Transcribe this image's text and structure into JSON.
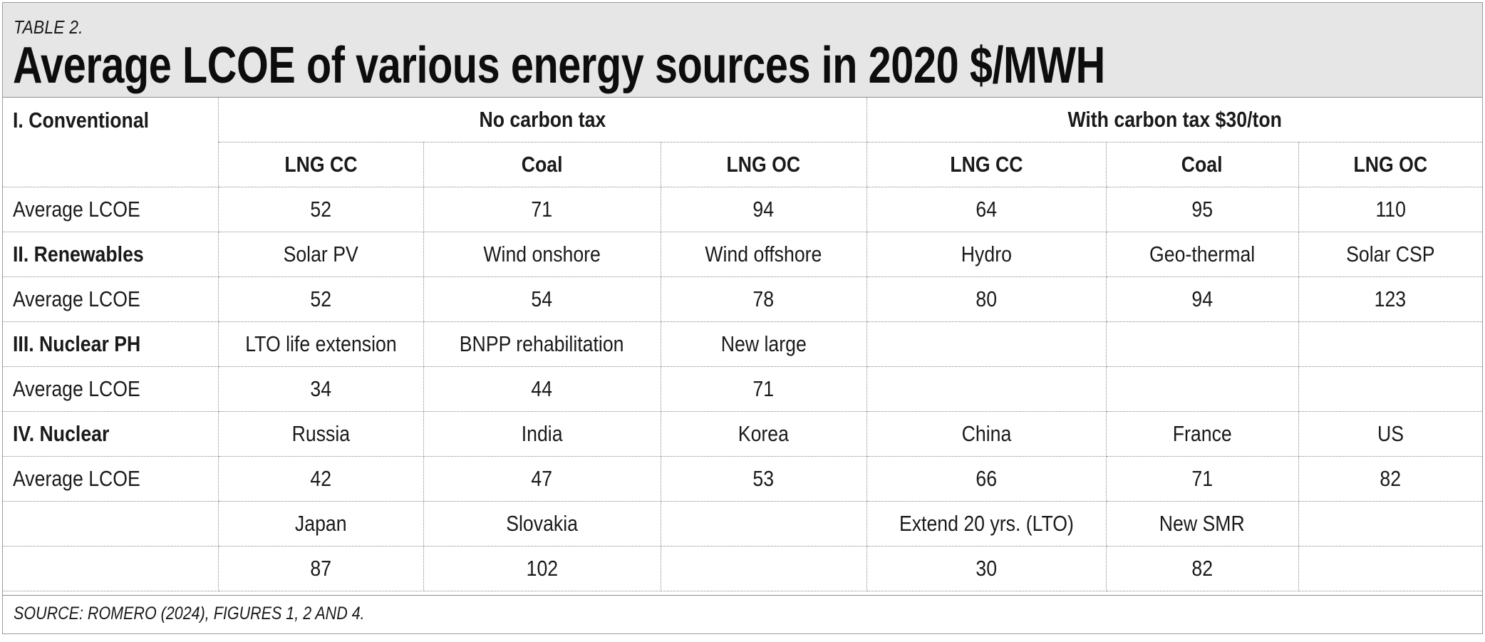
{
  "table": {
    "label": "TABLE 2.",
    "title": "Average LCOE of various energy sources in 2020 $/MWH",
    "source": "SOURCE: ROMERO (2024), FIGURES 1, 2 AND 4."
  },
  "section_header": {
    "row_label": "I. Conventional",
    "group_no_tax": "No carbon tax",
    "group_with_tax": "With carbon tax $30/ton"
  },
  "columns": [
    "LNG CC",
    "Coal",
    "LNG OC",
    "LNG CC",
    "Coal",
    "LNG OC"
  ],
  "rows": [
    {
      "label": "Average LCOE",
      "bold": false,
      "cells": [
        "52",
        "71",
        "94",
        "64",
        "95",
        "110"
      ]
    },
    {
      "label": "II. Renewables",
      "bold": true,
      "cells": [
        "Solar PV",
        "Wind onshore",
        "Wind offshore",
        "Hydro",
        "Geo-thermal",
        "Solar CSP"
      ]
    },
    {
      "label": "Average LCOE",
      "bold": false,
      "cells": [
        "52",
        "54",
        "78",
        "80",
        "94",
        "123"
      ]
    },
    {
      "label": "III. Nuclear PH",
      "bold": true,
      "cells": [
        "LTO life extension",
        "BNPP rehabilitation",
        "New large",
        "",
        "",
        ""
      ]
    },
    {
      "label": "Average LCOE",
      "bold": false,
      "cells": [
        "34",
        "44",
        "71",
        "",
        "",
        ""
      ]
    },
    {
      "label": "IV. Nuclear",
      "bold": true,
      "cells": [
        "Russia",
        "India",
        "Korea",
        "China",
        "France",
        "US"
      ]
    },
    {
      "label": "Average LCOE",
      "bold": false,
      "cells": [
        "42",
        "47",
        "53",
        "66",
        "71",
        "82"
      ]
    },
    {
      "label": "",
      "bold": false,
      "cells": [
        "Japan",
        "Slovakia",
        "",
        "Extend 20 yrs. (LTO)",
        "New SMR",
        ""
      ]
    },
    {
      "label": "",
      "bold": false,
      "cells": [
        "87",
        "102",
        "",
        "30",
        "82",
        ""
      ]
    }
  ]
}
